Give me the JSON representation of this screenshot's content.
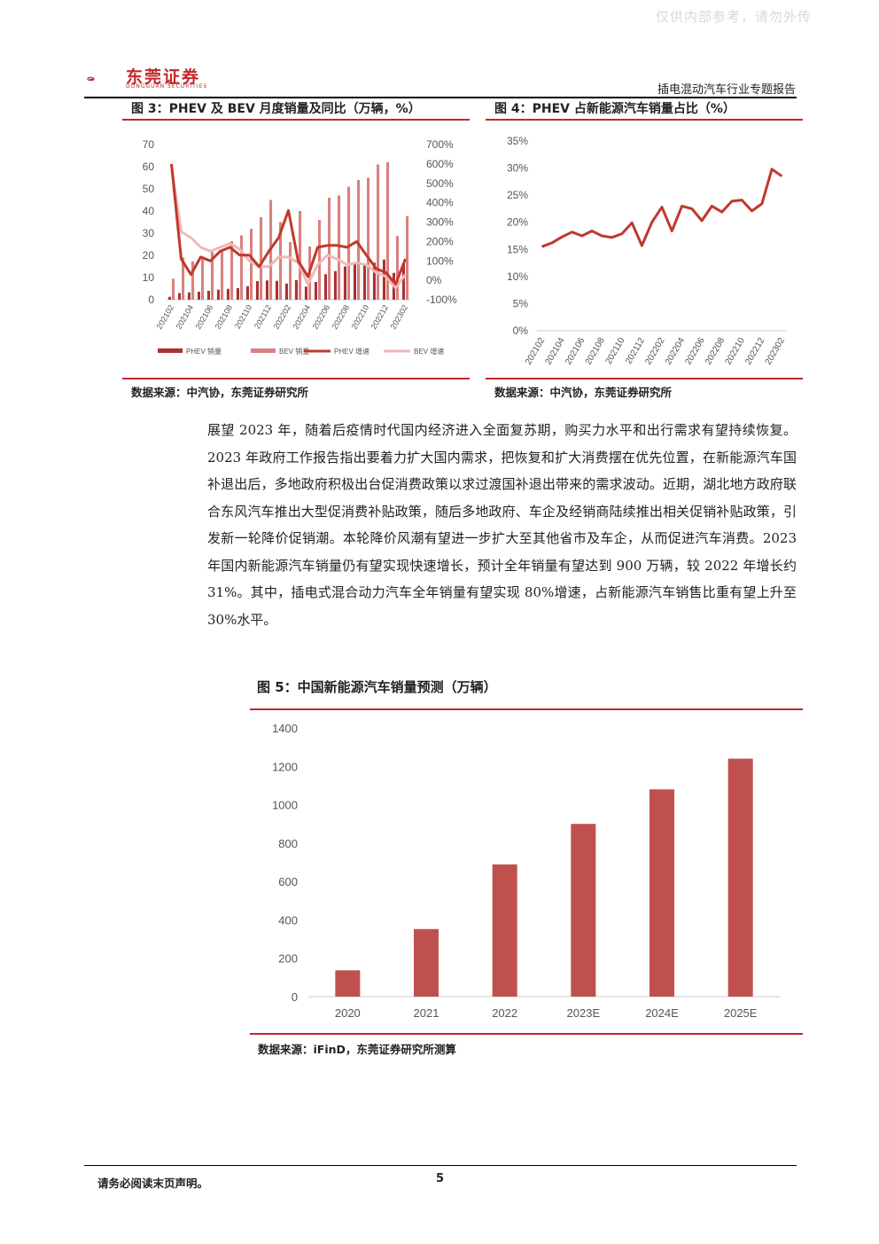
{
  "page": {
    "watermark": "仅供内部参考，请勿外传",
    "logo_text": "东莞证券",
    "logo_sub": "DONGGUAN SECURITIES",
    "report_title": "插电混动汽车行业专题报告",
    "footer_note": "请务必阅读末页声明。",
    "page_number": "5",
    "body_paragraph": "展望 2023 年，随着后疫情时代国内经济进入全面复苏期，购买力水平和出行需求有望持续恢复。2023 年政府工作报告指出要着力扩大国内需求，把恢复和扩大消费摆在优先位置，在新能源汽车国补退出后，多地政府积极出台促消费政策以求过渡国补退出带来的需求波动。近期，湖北地方政府联合东风汽车推出大型促消费补贴政策，随后多地政府、车企及经销商陆续推出相关促销补贴政策，引发新一轮降价促销潮。本轮降价风潮有望进一步扩大至其他省市及车企，从而促进汽车消费。2023 年国内新能源汽车销量仍有望实现快速增长，预计全年销量有望达到 900 万辆，较 2022 年增长约 31%。其中，插电式混合动力汽车全年销量有望实现 80%增速，占新能源汽车销售比重有望上升至 30%水平。",
    "fig3_title": "图 3：PHEV 及 BEV 月度销量及同比（万辆，%）",
    "fig3_source": "数据来源：中汽协，东莞证券研究所",
    "fig4_title": "图 4：PHEV 占新能源汽车销量占比（%）",
    "fig4_source": "数据来源：中汽协，东莞证券研究所",
    "fig5_title": "图 5：中国新能源汽车销量预测（万辆）",
    "fig5_source": "数据来源：iFinD，东莞证券研究所测算"
  },
  "colors": {
    "brand_red": "#c0282d",
    "phev_bar": "#a83232",
    "bev_bar": "#d98080",
    "phev_line": "#c0392b",
    "bev_line": "#f0b8b8",
    "forecast_bar": "#c0504d"
  },
  "chart_data": [
    {
      "type": "bar",
      "id": "fig3",
      "categories": [
        "202102",
        "202103",
        "202104",
        "202105",
        "202106",
        "202107",
        "202108",
        "202109",
        "202110",
        "202111",
        "202112",
        "202201",
        "202202",
        "202203",
        "202204",
        "202205",
        "202206",
        "202207",
        "202208",
        "202209",
        "202210",
        "202211",
        "202212",
        "202301",
        "202302"
      ],
      "x_tick_labels": [
        "202102",
        "202104",
        "202106",
        "202108",
        "202110",
        "202112",
        "202202",
        "202204",
        "202206",
        "202208",
        "202210",
        "202212",
        "202302"
      ],
      "series": [
        {
          "name": "PHEV 销量",
          "kind": "bar",
          "axis": "left",
          "values": [
            1.3,
            3.0,
            3.3,
            3.6,
            4.0,
            4.5,
            4.9,
            5.2,
            6.1,
            8.4,
            8.7,
            8.5,
            7.3,
            8.8,
            5.9,
            8.0,
            11.5,
            12.9,
            15.0,
            16.4,
            16.2,
            16.7,
            18.1,
            12.1,
            16.3
          ]
        },
        {
          "name": "BEV 销量",
          "kind": "bar",
          "axis": "left",
          "values": [
            9.5,
            19.1,
            17.3,
            18.2,
            21.5,
            21.6,
            26.4,
            29.0,
            32.0,
            37.2,
            45.0,
            35.0,
            26.0,
            40.0,
            24.0,
            36.0,
            46.0,
            47.0,
            51.0,
            54.0,
            55.0,
            61.0,
            62.0,
            28.7,
            37.7
          ]
        },
        {
          "name": "PHEV 增速",
          "kind": "line",
          "axis": "right",
          "values": [
            600,
            110,
            30,
            120,
            100,
            150,
            170,
            130,
            130,
            70,
            150,
            220,
            360,
            100,
            20,
            170,
            180,
            180,
            170,
            200,
            130,
            60,
            40,
            -20,
            110
          ]
        },
        {
          "name": "BEV 增速",
          "kind": "line",
          "axis": "right",
          "values": [
            590,
            250,
            220,
            170,
            150,
            170,
            190,
            160,
            100,
            70,
            70,
            120,
            120,
            90,
            -20,
            80,
            130,
            110,
            80,
            90,
            80,
            40,
            20,
            -40,
            30
          ]
        }
      ],
      "ylim_left": [
        0,
        70
      ],
      "yticks_left": [
        "0",
        "10",
        "20",
        "30",
        "40",
        "50",
        "60",
        "70"
      ],
      "ylim_right": [
        -100,
        700
      ],
      "yticks_right": [
        "-100%",
        "0%",
        "100%",
        "200%",
        "300%",
        "400%",
        "500%",
        "600%",
        "700%"
      ],
      "legend_position": "bottom",
      "grid": false
    },
    {
      "type": "line",
      "id": "fig4",
      "categories": [
        "202102",
        "202103",
        "202104",
        "202105",
        "202106",
        "202107",
        "202108",
        "202109",
        "202110",
        "202111",
        "202112",
        "202201",
        "202202",
        "202203",
        "202204",
        "202205",
        "202206",
        "202207",
        "202208",
        "202209",
        "202210",
        "202211",
        "202212",
        "202301",
        "202302"
      ],
      "x_tick_labels": [
        "202102",
        "202104",
        "202106",
        "202108",
        "202110",
        "202112",
        "202202",
        "202204",
        "202206",
        "202208",
        "202210",
        "202212",
        "202302"
      ],
      "series": [
        {
          "name": "PHEV 占比",
          "values": [
            15.5,
            16.2,
            17.3,
            18.2,
            17.5,
            18.4,
            17.5,
            17.2,
            17.9,
            19.9,
            15.7,
            20.0,
            22.8,
            18.4,
            23.0,
            22.5,
            20.3,
            23.0,
            21.9,
            23.9,
            24.1,
            22.1,
            23.4,
            29.8,
            28.5
          ]
        }
      ],
      "ylim": [
        0,
        35
      ],
      "yticks": [
        "0%",
        "5%",
        "10%",
        "15%",
        "20%",
        "25%",
        "30%",
        "35%"
      ],
      "grid": false
    },
    {
      "type": "bar",
      "id": "fig5",
      "categories": [
        "2020",
        "2021",
        "2022",
        "2023E",
        "2024E",
        "2025E"
      ],
      "values": [
        137,
        352,
        689,
        900,
        1080,
        1240
      ],
      "ylim": [
        0,
        1400
      ],
      "yticks": [
        "0",
        "200",
        "400",
        "600",
        "800",
        "1000",
        "1200",
        "1400"
      ],
      "grid": false
    }
  ]
}
